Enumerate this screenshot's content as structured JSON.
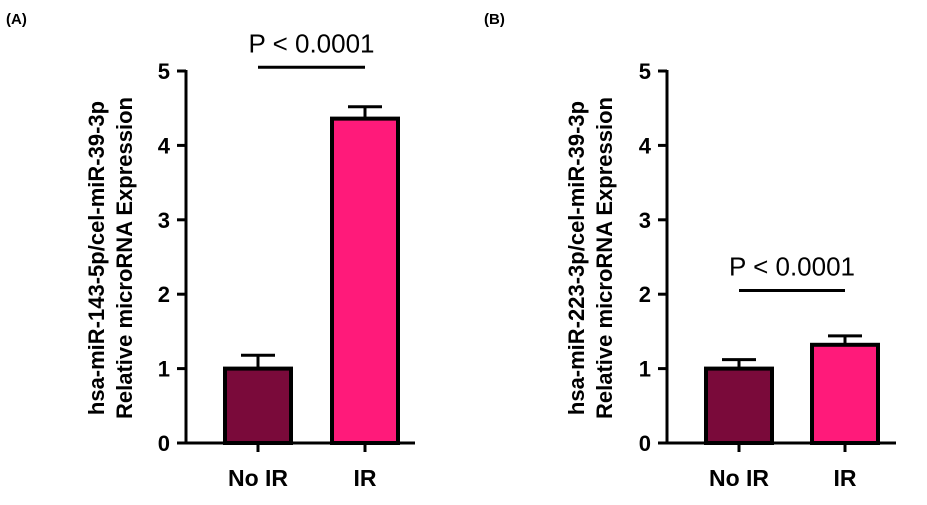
{
  "chart_data": [
    {
      "type": "bar",
      "panel_label": "(A)",
      "categories": [
        "No IR",
        "IR"
      ],
      "values": [
        1.0,
        4.36
      ],
      "error": [
        0.18,
        0.16
      ],
      "colors": [
        "#7a0a3a",
        "#ff1a7a"
      ],
      "ylabel_lines": [
        "hsa-miR-143-5p/cel-miR-39-3p",
        "Relative microRNA Expression"
      ],
      "ylim": [
        0,
        5
      ],
      "yticks": [
        "0",
        "1",
        "2",
        "3",
        "4",
        "5"
      ],
      "annotation": {
        "text": "P < 0.0001",
        "bracket_y": 5.05,
        "between": [
          "No IR",
          "IR"
        ]
      }
    },
    {
      "type": "bar",
      "panel_label": "(B)",
      "categories": [
        "No IR",
        "IR"
      ],
      "values": [
        1.0,
        1.32
      ],
      "error": [
        0.12,
        0.12
      ],
      "colors": [
        "#7a0a3a",
        "#ff1a7a"
      ],
      "ylabel_lines": [
        "hsa-miR-223-3p/cel-miR-39-3p",
        "Relative microRNA Expression"
      ],
      "ylim": [
        0,
        5
      ],
      "yticks": [
        "0",
        "1",
        "2",
        "3",
        "4",
        "5"
      ],
      "annotation": {
        "text": "P < 0.0001",
        "bracket_y": 2.05,
        "between": [
          "No IR",
          "IR"
        ]
      }
    }
  ]
}
